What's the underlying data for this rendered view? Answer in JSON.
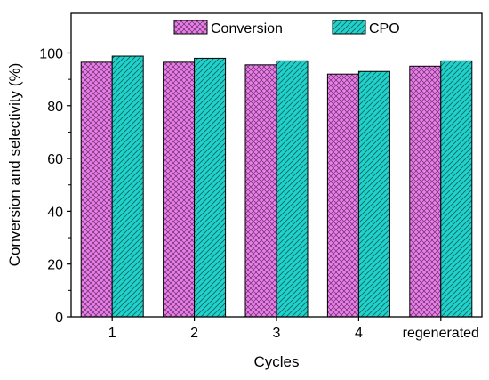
{
  "chart_data": {
    "type": "bar",
    "xlabel": "Cycles",
    "ylabel": "Conversion and selectivity (%)",
    "categories": [
      "1",
      "2",
      "3",
      "4",
      "regenerated"
    ],
    "ylim": [
      0,
      115
    ],
    "yticks": [
      0,
      20,
      40,
      60,
      80,
      100
    ],
    "grid": false,
    "legend_position": "top-center",
    "series": [
      {
        "name": "Conversion",
        "values": [
          96.5,
          96.5,
          95.5,
          92.0,
          95.0
        ],
        "color": "#e87fe8",
        "pattern": "crosshatch"
      },
      {
        "name": "CPO",
        "values": [
          98.8,
          98.0,
          97.0,
          93.0,
          97.0
        ],
        "color": "#1fd3cc",
        "pattern": "diagonal"
      }
    ]
  }
}
